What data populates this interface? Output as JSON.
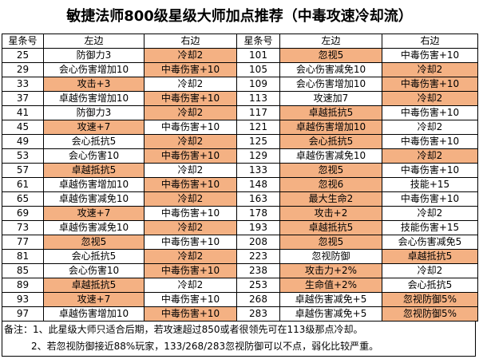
{
  "title": "敏捷法师800级星级大师加点推荐（中毒攻速冷却流）",
  "table": {
    "header": [
      "星条号",
      "左边",
      "右边",
      "星条号",
      "左边",
      "右边"
    ],
    "rows": [
      [
        25,
        "防御力3",
        {
          "text": "冷却2",
          "highlight": true
        },
        101,
        {
          "text": "忽视5",
          "highlight": true
        },
        "中毒伤害+10"
      ],
      [
        29,
        "会心伤害增加10",
        {
          "text": "中毒伤害+10",
          "highlight": true
        },
        105,
        "会心伤害减免10",
        {
          "text": "冷却2",
          "highlight": true
        }
      ],
      [
        33,
        {
          "text": "攻击+3",
          "highlight": true
        },
        "冷却2",
        109,
        "会心伤害增加10",
        {
          "text": "中毒伤害+10",
          "highlight": true
        }
      ],
      [
        37,
        "卓越伤害增加10",
        {
          "text": "中毒伤害+10",
          "highlight": true
        },
        113,
        "攻速加7",
        {
          "text": "冷却2",
          "highlight": true
        }
      ],
      [
        41,
        "防御力3",
        {
          "text": "冷却2",
          "highlight": true
        },
        117,
        {
          "text": "卓越抵抗5",
          "highlight": true
        },
        "中毒伤害+10"
      ],
      [
        45,
        {
          "text": "攻速+7",
          "highlight": true
        },
        "中毒伤害+10",
        121,
        {
          "text": "卓越伤害增加10",
          "highlight": true
        },
        "冷却2"
      ],
      [
        49,
        "会心抵抗5",
        {
          "text": "冷却2",
          "highlight": true
        },
        125,
        {
          "text": "会心抵抗5",
          "highlight": true
        },
        "中毒伤害+10"
      ],
      [
        53,
        "会心伤害10",
        {
          "text": "中毒伤害+10",
          "highlight": true
        },
        129,
        "卓越伤害减免10",
        {
          "text": "冷却2",
          "highlight": true
        }
      ],
      [
        57,
        {
          "text": "卓越抵抗5",
          "highlight": true
        },
        "冷却2",
        133,
        {
          "text": "忽视5",
          "highlight": true
        },
        "中毒伤害+10"
      ],
      [
        61,
        "卓越伤害增加10",
        {
          "text": "中毒伤害+10",
          "highlight": true
        },
        148,
        {
          "text": "忽视6",
          "highlight": true
        },
        "技能+15"
      ],
      [
        65,
        "卓越伤害减免10",
        {
          "text": "冷却2",
          "highlight": true
        },
        163,
        {
          "text": "最大生命2",
          "highlight": true
        },
        "中毒伤害+10"
      ],
      [
        69,
        {
          "text": "攻速+7",
          "highlight": true
        },
        "中毒伤害+10",
        178,
        {
          "text": "攻击+2",
          "highlight": true
        },
        "冷却2"
      ],
      [
        73,
        "卓越伤害减免10",
        {
          "text": "冷却2",
          "highlight": true
        },
        193,
        {
          "text": "卓越抵抗5",
          "highlight": true
        },
        "技能伤害+15"
      ],
      [
        77,
        {
          "text": "忽视5",
          "highlight": true
        },
        "中毒伤害+10",
        208,
        {
          "text": "忽视5",
          "highlight": true
        },
        "会心伤害减免5"
      ],
      [
        81,
        "会心抵抗5",
        {
          "text": "冷却2",
          "highlight": true
        },
        223,
        "忽视防御",
        {
          "text": "卓越抵抗5",
          "highlight": true
        }
      ],
      [
        85,
        "会心伤害10",
        {
          "text": "中毒伤害+10",
          "highlight": true
        },
        238,
        {
          "text": "攻击力+2%",
          "highlight": true
        },
        "冷却2"
      ],
      [
        89,
        {
          "text": "卓越抵抗5",
          "highlight": true
        },
        "冷却2",
        253,
        {
          "text": "生命值+2%",
          "highlight": true
        },
        "会心抵抗5"
      ],
      [
        93,
        {
          "text": "攻速+7",
          "highlight": true
        },
        "中毒伤害+10",
        268,
        "卓越伤害减免+5",
        {
          "text": "忽视防御5%",
          "highlight": true
        }
      ],
      [
        97,
        "卓越伤害增加10",
        {
          "text": "中毒伤害+10",
          "highlight": true
        },
        283,
        "卓越伤害减免+5",
        {
          "text": "忽视防御5%",
          "highlight": true
        }
      ]
    ]
  },
  "notes": [
    "备注：1、此星级大师只适合后期，若攻速超过850或者很领先可在113级那点冷却。",
    "2、若忽视防御接近88%玩家，133/268/283忽视防御可以不点，弱化比较严重。"
  ]
}
